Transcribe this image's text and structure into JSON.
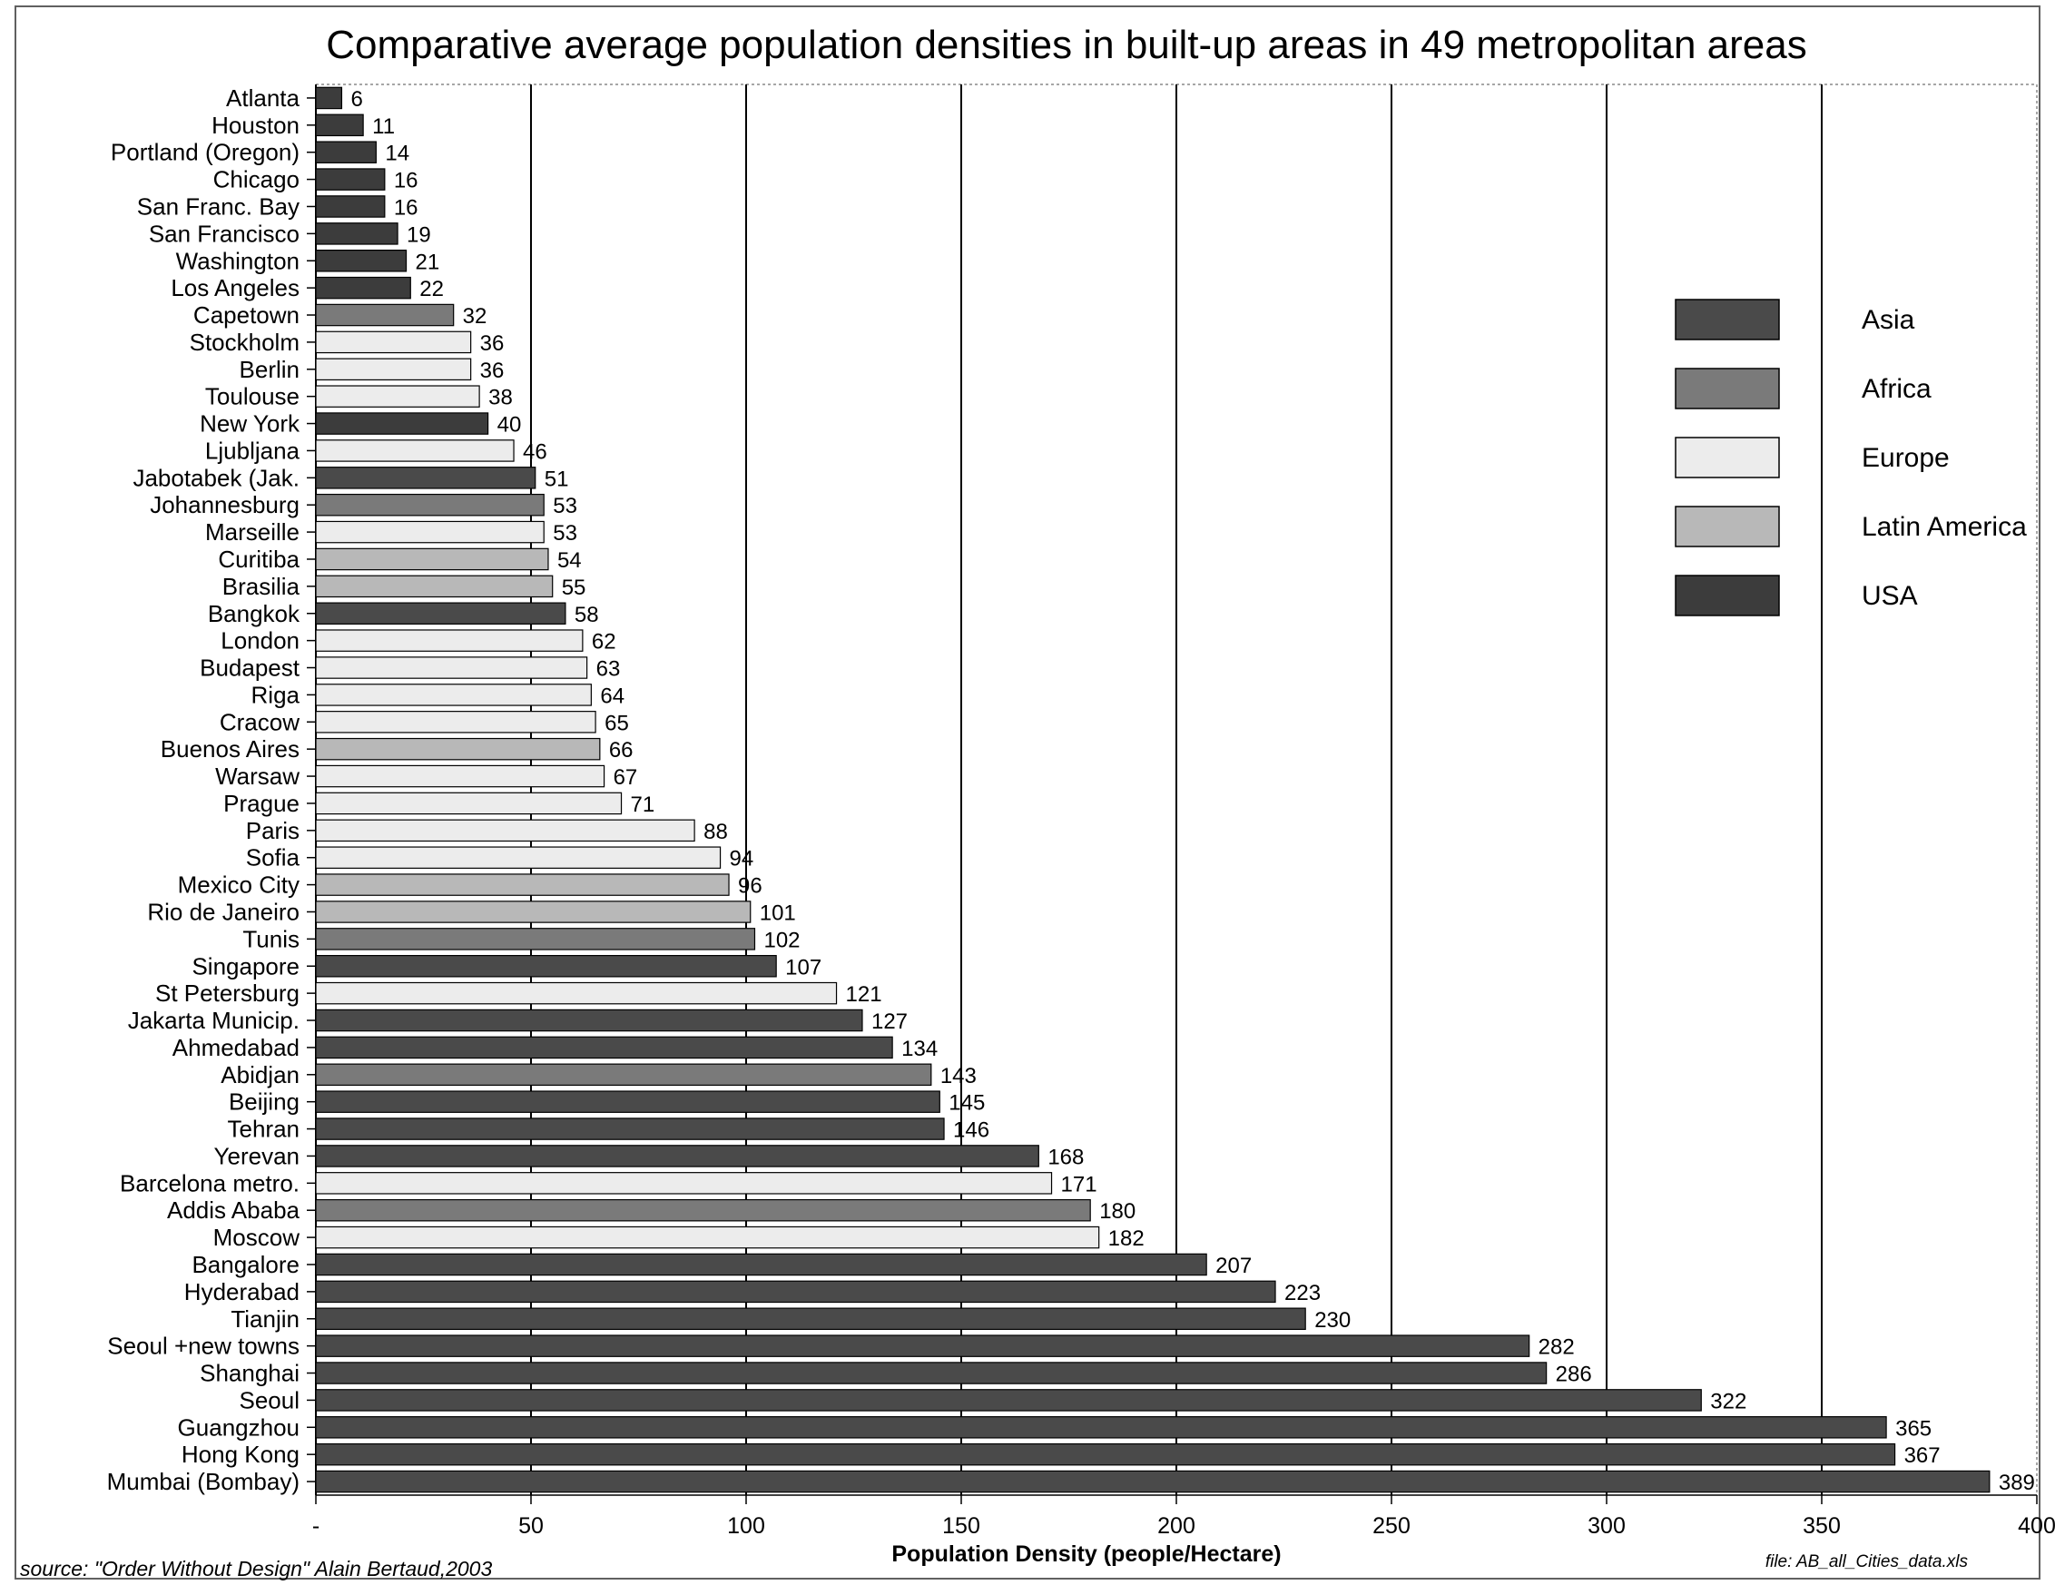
{
  "chart_data": {
    "type": "bar",
    "orientation": "horizontal",
    "title": "Comparative  average population densities in built-up areas in 49 metropolitan areas",
    "xlabel": "Population Density (people/Hectare)",
    "ylabel": "",
    "xlim": [
      0,
      400
    ],
    "xticks": [
      0,
      50,
      100,
      150,
      200,
      250,
      300,
      350,
      400
    ],
    "xtick_labels": [
      "-",
      "50",
      "100",
      "150",
      "200",
      "250",
      "300",
      "350",
      "400"
    ],
    "grid": "vertical lines at each tick",
    "legend_placement": "right",
    "legend": [
      {
        "name": "Asia",
        "color": "#4a4a4a"
      },
      {
        "name": "Africa",
        "color": "#7a7a7a"
      },
      {
        "name": "Europe",
        "color": "#ececec"
      },
      {
        "name": "Latin America",
        "color": "#b8b8b8"
      },
      {
        "name": "USA",
        "color": "#3c3c3c"
      }
    ],
    "bars": [
      {
        "city": "Atlanta",
        "value": 6,
        "region": "USA"
      },
      {
        "city": "Houston",
        "value": 11,
        "region": "USA"
      },
      {
        "city": "Portland (Oregon)",
        "value": 14,
        "region": "USA"
      },
      {
        "city": "Chicago",
        "value": 16,
        "region": "USA"
      },
      {
        "city": "San Franc. Bay",
        "value": 16,
        "region": "USA"
      },
      {
        "city": "San Francisco",
        "value": 19,
        "region": "USA"
      },
      {
        "city": "Washington",
        "value": 21,
        "region": "USA"
      },
      {
        "city": "Los Angeles",
        "value": 22,
        "region": "USA"
      },
      {
        "city": "Capetown",
        "value": 32,
        "region": "Africa"
      },
      {
        "city": "Stockholm",
        "value": 36,
        "region": "Europe"
      },
      {
        "city": "Berlin",
        "value": 36,
        "region": "Europe"
      },
      {
        "city": "Toulouse",
        "value": 38,
        "region": "Europe"
      },
      {
        "city": "New York",
        "value": 40,
        "region": "USA"
      },
      {
        "city": "Ljubljana",
        "value": 46,
        "region": "Europe"
      },
      {
        "city": "Jabotabek (Jak.",
        "value": 51,
        "region": "Asia"
      },
      {
        "city": "Johannesburg",
        "value": 53,
        "region": "Africa"
      },
      {
        "city": "Marseille",
        "value": 53,
        "region": "Europe"
      },
      {
        "city": "Curitiba",
        "value": 54,
        "region": "Latin America"
      },
      {
        "city": "Brasilia",
        "value": 55,
        "region": "Latin America"
      },
      {
        "city": "Bangkok",
        "value": 58,
        "region": "Asia"
      },
      {
        "city": "London",
        "value": 62,
        "region": "Europe"
      },
      {
        "city": "Budapest",
        "value": 63,
        "region": "Europe"
      },
      {
        "city": "Riga",
        "value": 64,
        "region": "Europe"
      },
      {
        "city": "Cracow",
        "value": 65,
        "region": "Europe"
      },
      {
        "city": "Buenos Aires",
        "value": 66,
        "region": "Latin America"
      },
      {
        "city": "Warsaw",
        "value": 67,
        "region": "Europe"
      },
      {
        "city": "Prague",
        "value": 71,
        "region": "Europe"
      },
      {
        "city": "Paris",
        "value": 88,
        "region": "Europe"
      },
      {
        "city": "Sofia",
        "value": 94,
        "region": "Europe"
      },
      {
        "city": "Mexico City",
        "value": 96,
        "region": "Latin America"
      },
      {
        "city": "Rio de Janeiro",
        "value": 101,
        "region": "Latin America"
      },
      {
        "city": "Tunis",
        "value": 102,
        "region": "Africa"
      },
      {
        "city": "Singapore",
        "value": 107,
        "region": "Asia"
      },
      {
        "city": "St Petersburg",
        "value": 121,
        "region": "Europe"
      },
      {
        "city": "Jakarta Municip.",
        "value": 127,
        "region": "Asia"
      },
      {
        "city": "Ahmedabad",
        "value": 134,
        "region": "Asia"
      },
      {
        "city": "Abidjan",
        "value": 143,
        "region": "Africa"
      },
      {
        "city": "Beijing",
        "value": 145,
        "region": "Asia"
      },
      {
        "city": "Tehran",
        "value": 146,
        "region": "Asia"
      },
      {
        "city": "Yerevan",
        "value": 168,
        "region": "Asia"
      },
      {
        "city": "Barcelona metro.",
        "value": 171,
        "region": "Europe"
      },
      {
        "city": "Addis Ababa",
        "value": 180,
        "region": "Africa"
      },
      {
        "city": "Moscow",
        "value": 182,
        "region": "Europe"
      },
      {
        "city": "Bangalore",
        "value": 207,
        "region": "Asia"
      },
      {
        "city": "Hyderabad",
        "value": 223,
        "region": "Asia"
      },
      {
        "city": "Tianjin",
        "value": 230,
        "region": "Asia"
      },
      {
        "city": "Seoul +new towns",
        "value": 282,
        "region": "Asia"
      },
      {
        "city": "Shanghai",
        "value": 286,
        "region": "Asia"
      },
      {
        "city": "Seoul",
        "value": 322,
        "region": "Asia"
      },
      {
        "city": "Guangzhou",
        "value": 365,
        "region": "Asia"
      },
      {
        "city": "Hong Kong",
        "value": 367,
        "region": "Asia"
      },
      {
        "city": "Mumbai  (Bombay)",
        "value": 389,
        "region": "Asia"
      }
    ]
  },
  "footer": {
    "source": "source: \"Order Without Design\" Alain Bertaud,2003",
    "file": "file: AB_all_Cities_data.xls"
  }
}
